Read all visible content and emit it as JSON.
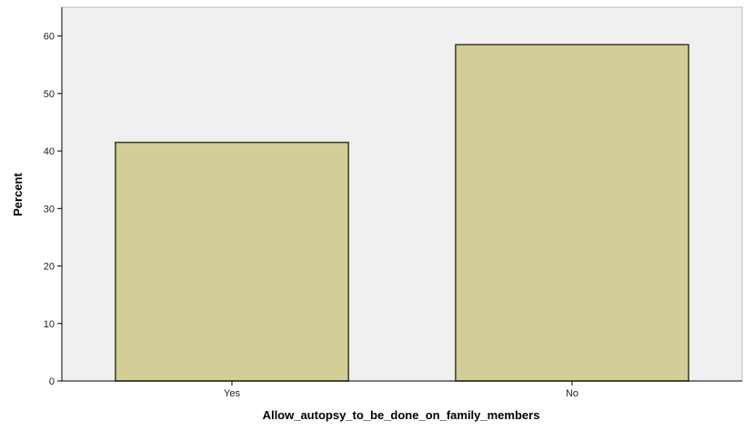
{
  "chart_data": {
    "type": "bar",
    "title": "",
    "xlabel": "Allow_autopsy_to_be_done_on_family_members",
    "ylabel": "Percent",
    "categories": [
      "Yes",
      "No"
    ],
    "values": [
      41.5,
      58.5
    ],
    "ylim": [
      0,
      65
    ],
    "yticks": [
      0,
      10,
      20,
      30,
      40,
      50,
      60
    ],
    "grid": false,
    "colors": {
      "bar_fill": "#d3ce97",
      "bar_stroke": "#3a3a1e",
      "plot_background": "#f0f0f0",
      "axis": "#000000"
    }
  }
}
